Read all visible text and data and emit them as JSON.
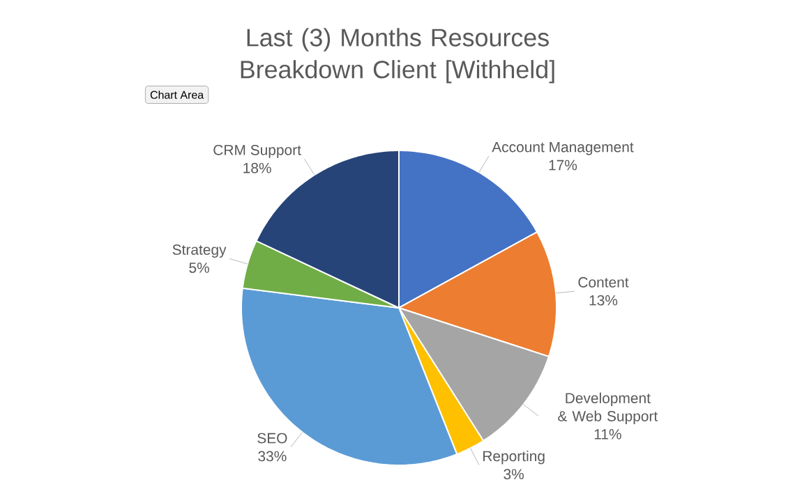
{
  "chart_data": {
    "type": "pie",
    "title": "Last (3) Months Resources Breakdown Client [Withheld]",
    "categories": [
      "Account Management",
      "Content",
      "Development & Web Support",
      "Reporting",
      "SEO",
      "Strategy",
      "CRM Support"
    ],
    "values": [
      17,
      13,
      11,
      3,
      33,
      5,
      18
    ],
    "value_labels": [
      "17%",
      "13%",
      "11%",
      "3%",
      "33%",
      "5%",
      "18%"
    ],
    "colors": [
      "#4472c4",
      "#ed7d31",
      "#a5a5a5",
      "#ffc000",
      "#5b9bd5",
      "#70ad47",
      "#264478"
    ],
    "annotations": [
      "Chart Area"
    ]
  }
}
